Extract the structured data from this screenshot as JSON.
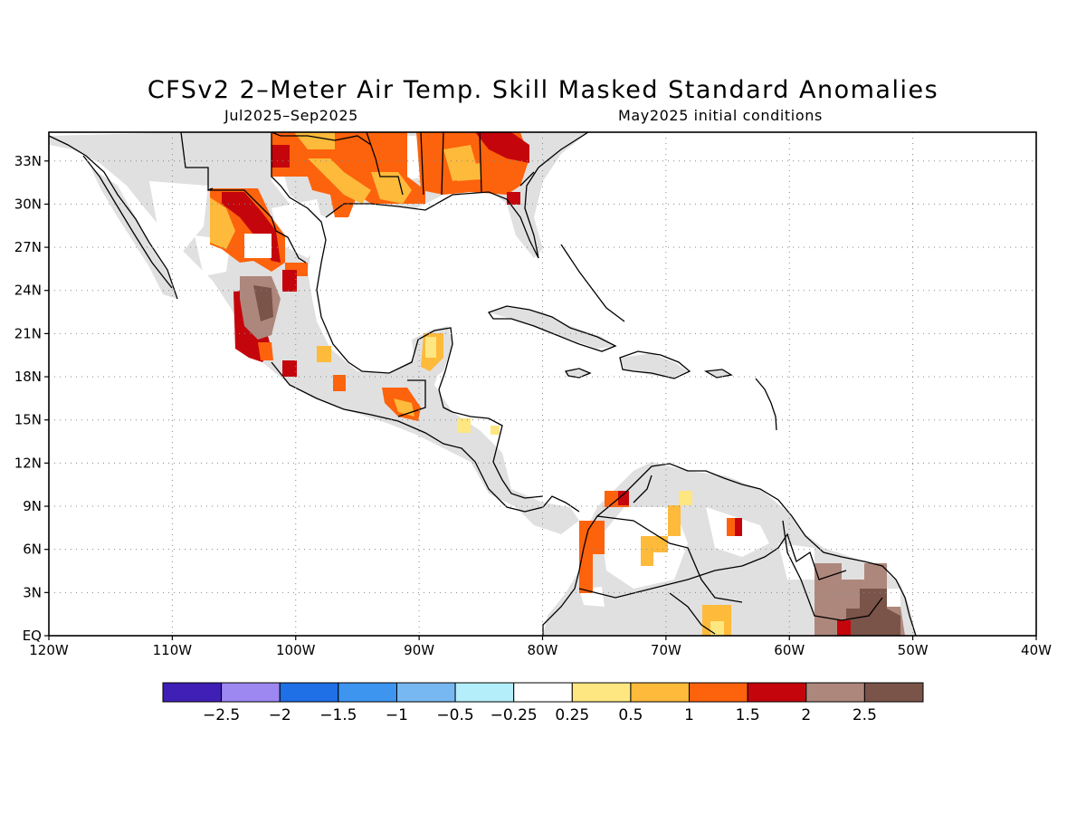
{
  "title": "CFSv2 2–Meter Air Temp. Skill Masked Standard Anomalies",
  "subtitle_left": "Jul2025–Sep2025",
  "subtitle_right": "May2025 initial conditions",
  "map": {
    "lon_range": [
      -120,
      -40
    ],
    "lat_range": [
      0,
      35
    ],
    "lon_labels": [
      "120W",
      "110W",
      "100W",
      "90W",
      "80W",
      "70W",
      "60W",
      "50W",
      "40W"
    ],
    "lat_labels": [
      "EQ",
      "3N",
      "6N",
      "9N",
      "12N",
      "15N",
      "18N",
      "21N",
      "24N",
      "27N",
      "30N",
      "33N"
    ],
    "grid": "dotted"
  },
  "colorbar": {
    "colors": [
      "#3f1fb5",
      "#9d88f2",
      "#1f6fe6",
      "#3e95f0",
      "#78b8f2",
      "#b4eefa",
      "#ffffff",
      "#fee681",
      "#fdba3b",
      "#fd620c",
      "#c4060c",
      "#ae877c",
      "#7a5349"
    ],
    "labels": [
      "−2.5",
      "−2",
      "−1.5",
      "−1",
      "−0.5",
      "−0.25",
      "0.25",
      "0.5",
      "1",
      "1.5",
      "2",
      "2.5"
    ]
  },
  "colors": {
    "land_masked": "#e0e0e0",
    "anom_025": "#fee681",
    "anom_05": "#fdba3b",
    "anom_1": "#fd620c",
    "anom_15": "#c4060c",
    "anom_2": "#ae877c",
    "anom_25": "#7a5349"
  }
}
